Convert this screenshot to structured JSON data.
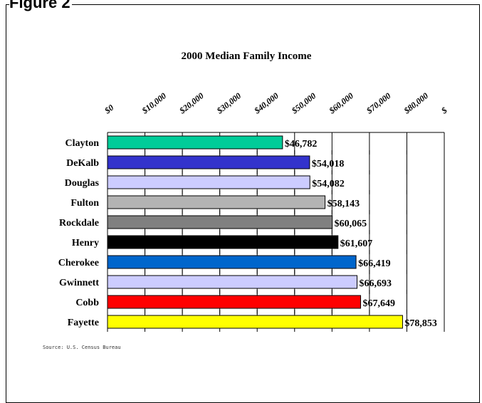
{
  "figure_label": "Figure 2",
  "source": "Source: U.S. Census Bureau",
  "chart_data": {
    "type": "bar",
    "orientation": "horizontal",
    "title": "2000 Median Family Income",
    "xlim": [
      0,
      90000
    ],
    "ticks": [
      0,
      10000,
      20000,
      30000,
      40000,
      50000,
      60000,
      70000,
      80000,
      90000
    ],
    "tick_labels": [
      "$0",
      "$10,000",
      "$20,000",
      "$30,000",
      "$40,000",
      "$50,000",
      "$60,000",
      "$70,000",
      "$80,000",
      "$"
    ],
    "gridlines": "vertical",
    "categories": [
      "Clayton",
      "DeKalb",
      "Douglas",
      "Fulton",
      "Rockdale",
      "Henry",
      "Cherokee",
      "Gwinnett",
      "Cobb",
      "Fayette"
    ],
    "values": [
      46782,
      54018,
      54082,
      58143,
      60065,
      61607,
      66419,
      66693,
      67649,
      78853
    ],
    "value_labels": [
      "$46,782",
      "$54,018",
      "$54,082",
      "$58,143",
      "$60,065",
      "$61,607",
      "$66,419",
      "$66,693",
      "$67,649",
      "$78,853"
    ],
    "colors": [
      "#00cc99",
      "#3333cc",
      "#ccccff",
      "#b3b3b3",
      "#808080",
      "#000000",
      "#0066cc",
      "#ccccff",
      "#ff0000",
      "#ffff00"
    ]
  }
}
